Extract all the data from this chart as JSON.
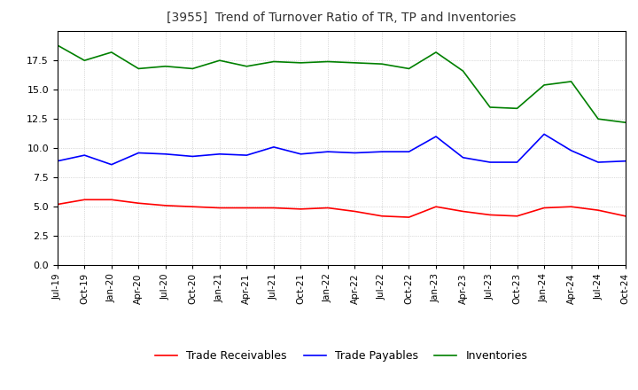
{
  "title": "[3955]  Trend of Turnover Ratio of TR, TP and Inventories",
  "x_labels": [
    "Jul-19",
    "Oct-19",
    "Jan-20",
    "Apr-20",
    "Jul-20",
    "Oct-20",
    "Jan-21",
    "Apr-21",
    "Jul-21",
    "Oct-21",
    "Jan-22",
    "Apr-22",
    "Jul-22",
    "Oct-22",
    "Jan-23",
    "Apr-23",
    "Jul-23",
    "Oct-23",
    "Jan-24",
    "Apr-24",
    "Jul-24",
    "Oct-24"
  ],
  "trade_receivables": [
    5.2,
    5.6,
    5.6,
    5.3,
    5.1,
    5.0,
    4.9,
    4.9,
    4.9,
    4.8,
    4.9,
    4.6,
    4.2,
    4.1,
    5.0,
    4.6,
    4.3,
    4.2,
    4.9,
    5.0,
    4.7,
    4.2
  ],
  "trade_payables": [
    8.9,
    9.4,
    8.6,
    9.6,
    9.5,
    9.3,
    9.5,
    9.4,
    10.1,
    9.5,
    9.7,
    9.6,
    9.7,
    9.7,
    11.0,
    9.2,
    8.8,
    8.8,
    11.2,
    9.8,
    8.8,
    8.9
  ],
  "inventories": [
    18.8,
    17.5,
    18.2,
    16.8,
    17.0,
    16.8,
    17.5,
    17.0,
    17.4,
    17.3,
    17.4,
    17.3,
    17.2,
    16.8,
    18.2,
    16.6,
    13.5,
    13.4,
    15.4,
    15.7,
    12.5,
    12.2
  ],
  "ylim": [
    0,
    20
  ],
  "yticks": [
    0.0,
    2.5,
    5.0,
    7.5,
    10.0,
    12.5,
    15.0,
    17.5
  ],
  "colors": {
    "trade_receivables": "#ff0000",
    "trade_payables": "#0000ff",
    "inventories": "#008000"
  },
  "legend_labels": [
    "Trade Receivables",
    "Trade Payables",
    "Inventories"
  ],
  "background_color": "#ffffff",
  "grid_color": "#aaaaaa"
}
